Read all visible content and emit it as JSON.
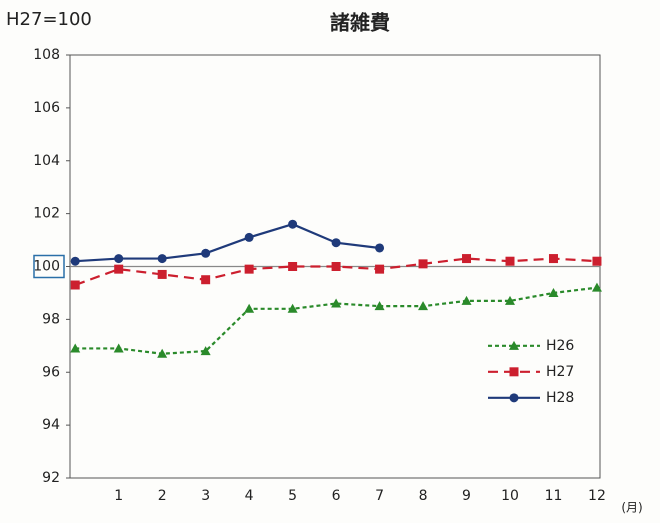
{
  "chart_data": {
    "type": "line",
    "title": "諸雑費",
    "base_note": "H27=100",
    "x_unit": "(月)",
    "x": [
      0,
      1,
      2,
      3,
      4,
      5,
      6,
      7,
      8,
      9,
      10,
      11,
      12
    ],
    "xlim": [
      -0.12,
      12.07
    ],
    "xticks": [
      1,
      2,
      3,
      4,
      5,
      6,
      7,
      8,
      9,
      10,
      11,
      12
    ],
    "ylim": [
      92,
      108
    ],
    "yticks": [
      92,
      94,
      96,
      98,
      100,
      102,
      104,
      106,
      108
    ],
    "reference_line": 100,
    "legend": "right",
    "series": [
      {
        "name": "H26",
        "color": "#2a8a2a",
        "marker": "triangle",
        "dash": "dashed",
        "values": [
          96.9,
          96.9,
          96.7,
          96.8,
          98.4,
          98.4,
          98.6,
          98.5,
          98.5,
          98.7,
          98.7,
          99.0,
          99.2
        ]
      },
      {
        "name": "H27",
        "color": "#cc1f2e",
        "marker": "square",
        "dash": "long-dashed",
        "values": [
          99.3,
          99.9,
          99.7,
          99.5,
          99.9,
          100.0,
          100.0,
          99.9,
          100.1,
          100.3,
          100.2,
          100.3,
          100.2
        ]
      },
      {
        "name": "H28",
        "color": "#1f3a7a",
        "marker": "circle",
        "dash": "solid",
        "values": [
          100.2,
          100.3,
          100.3,
          100.5,
          101.1,
          101.6,
          100.9,
          100.7,
          null,
          null,
          null,
          null,
          null
        ]
      }
    ]
  }
}
